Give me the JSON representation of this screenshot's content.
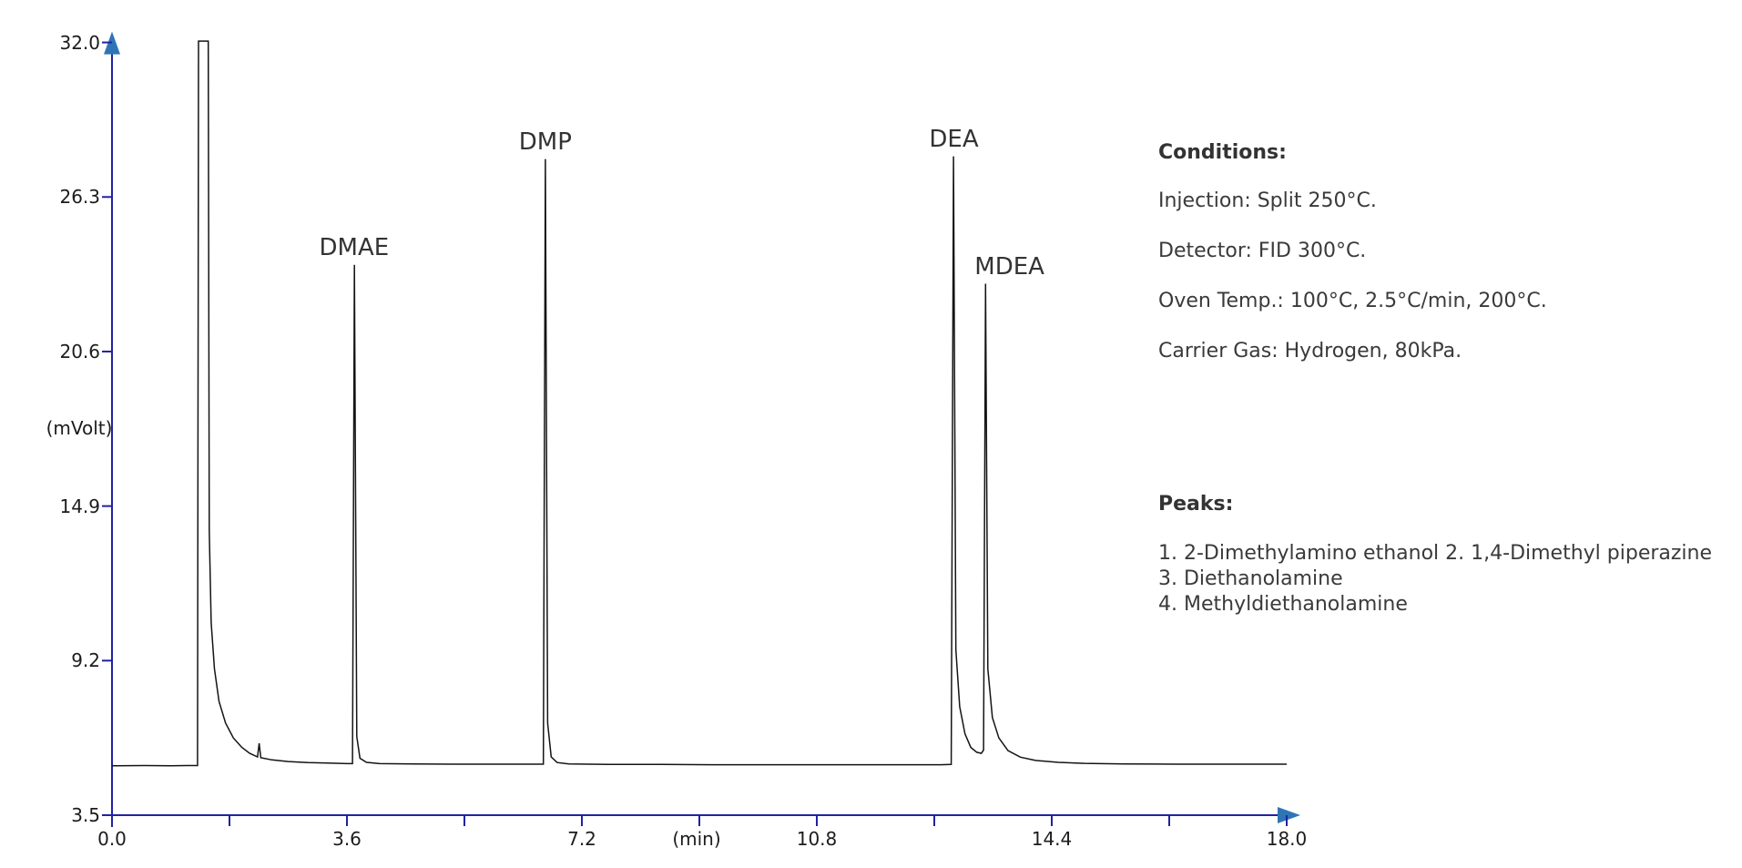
{
  "page": {
    "background": "#ffffff"
  },
  "chart_data": {
    "type": "line",
    "title": "",
    "xlabel": "(min)",
    "ylabel": "(mVolt)",
    "xlim": [
      0,
      18
    ],
    "ylim": [
      3.5,
      32.0
    ],
    "x_major_ticks": [
      0.0,
      3.6,
      7.2,
      10.8,
      14.4,
      18.0
    ],
    "x_minor_ticks": [
      1.8,
      5.4,
      9.0,
      12.6,
      16.2
    ],
    "y_ticks": [
      3.5,
      9.2,
      14.9,
      20.6,
      26.3,
      32.0
    ],
    "grid": false,
    "legend": "none",
    "axis_color": "#2121a3",
    "arrow_color": "#2e75b6",
    "trace_color": "#141414",
    "text_color": "#333333",
    "baseline_mv": 5.4,
    "peaks": [
      {
        "label": "",
        "name": "solvent-front",
        "t_min": 1.4,
        "apex_mv": 32.05,
        "clipped": true
      },
      {
        "label": "DMAE",
        "name": "2-dimethylamino-ethanol",
        "t_min": 3.71,
        "apex_mv": 23.8,
        "label_dx": 0
      },
      {
        "label": "DMP",
        "name": "1-4-dimethyl-piperazine",
        "t_min": 6.64,
        "apex_mv": 27.7,
        "label_dx": 0
      },
      {
        "label": "DEA",
        "name": "diethanolamine",
        "t_min": 12.9,
        "apex_mv": 27.8,
        "label_dx": 0
      },
      {
        "label": "MDEA",
        "name": "methyldiethanolamine",
        "t_min": 13.39,
        "apex_mv": 23.1,
        "label_dx": 26
      }
    ],
    "trace": [
      [
        0.0,
        5.32
      ],
      [
        0.5,
        5.33
      ],
      [
        0.9,
        5.32
      ],
      [
        1.15,
        5.33
      ],
      [
        1.31,
        5.33
      ],
      [
        1.325,
        32.05
      ],
      [
        1.475,
        32.05
      ],
      [
        1.49,
        14.0
      ],
      [
        1.52,
        10.6
      ],
      [
        1.57,
        8.9
      ],
      [
        1.64,
        7.7
      ],
      [
        1.74,
        6.9
      ],
      [
        1.86,
        6.35
      ],
      [
        1.99,
        6.0
      ],
      [
        2.11,
        5.78
      ],
      [
        2.23,
        5.65
      ],
      [
        2.255,
        6.15
      ],
      [
        2.28,
        5.62
      ],
      [
        2.45,
        5.54
      ],
      [
        2.7,
        5.48
      ],
      [
        3.0,
        5.44
      ],
      [
        3.3,
        5.42
      ],
      [
        3.6,
        5.4
      ],
      [
        3.685,
        5.4
      ],
      [
        3.715,
        23.8
      ],
      [
        3.75,
        6.4
      ],
      [
        3.8,
        5.6
      ],
      [
        3.9,
        5.45
      ],
      [
        4.1,
        5.4
      ],
      [
        4.6,
        5.39
      ],
      [
        5.2,
        5.38
      ],
      [
        5.8,
        5.38
      ],
      [
        6.3,
        5.38
      ],
      [
        6.61,
        5.38
      ],
      [
        6.64,
        27.7
      ],
      [
        6.675,
        6.9
      ],
      [
        6.73,
        5.65
      ],
      [
        6.82,
        5.44
      ],
      [
        7.0,
        5.39
      ],
      [
        7.6,
        5.37
      ],
      [
        8.4,
        5.37
      ],
      [
        9.2,
        5.36
      ],
      [
        10.0,
        5.36
      ],
      [
        10.8,
        5.36
      ],
      [
        11.6,
        5.36
      ],
      [
        12.3,
        5.36
      ],
      [
        12.7,
        5.36
      ],
      [
        12.86,
        5.37
      ],
      [
        12.895,
        27.8
      ],
      [
        12.93,
        9.6
      ],
      [
        12.99,
        7.5
      ],
      [
        13.07,
        6.5
      ],
      [
        13.16,
        6.0
      ],
      [
        13.25,
        5.82
      ],
      [
        13.32,
        5.78
      ],
      [
        13.355,
        5.9
      ],
      [
        13.385,
        23.1
      ],
      [
        13.42,
        8.9
      ],
      [
        13.49,
        7.1
      ],
      [
        13.59,
        6.35
      ],
      [
        13.73,
        5.88
      ],
      [
        13.92,
        5.64
      ],
      [
        14.15,
        5.52
      ],
      [
        14.5,
        5.45
      ],
      [
        14.9,
        5.41
      ],
      [
        15.5,
        5.39
      ],
      [
        16.3,
        5.38
      ],
      [
        17.2,
        5.38
      ],
      [
        18.0,
        5.38
      ]
    ]
  },
  "annotations": {
    "conditions": {
      "heading": "Conditions:",
      "lines": [
        "Injection: Split 250°C.",
        "Detector: FID 300°C.",
        "Oven Temp.: 100°C, 2.5°C/min, 200°C.",
        "Carrier Gas: Hydrogen, 80kPa."
      ]
    },
    "peaks_legend": {
      "heading": "Peaks:",
      "lines": [
        "1. 2-Dimethylamino ethanol 2. 1,4-Dimethyl piperazine",
        "3. Diethanolamine",
        "4. Methyldiethanolamine"
      ]
    }
  }
}
